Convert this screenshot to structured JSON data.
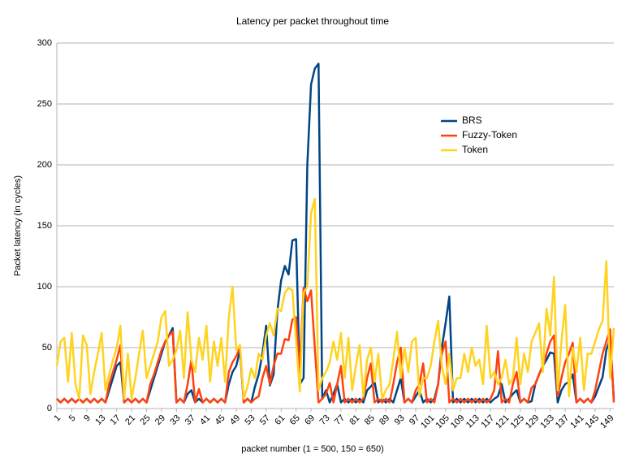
{
  "chart_data": {
    "type": "line",
    "title": "Latency per packet throughout time",
    "x_label": "packet number (1 = 500, 150 = 650)",
    "y_label": "Packet latency (in cycles)",
    "x": [
      1,
      2,
      3,
      4,
      5,
      6,
      7,
      8,
      9,
      10,
      11,
      12,
      13,
      14,
      15,
      16,
      17,
      18,
      19,
      20,
      21,
      22,
      23,
      24,
      25,
      26,
      27,
      28,
      29,
      30,
      31,
      32,
      33,
      34,
      35,
      36,
      37,
      38,
      39,
      40,
      41,
      42,
      43,
      44,
      45,
      46,
      47,
      48,
      49,
      50,
      51,
      52,
      53,
      54,
      55,
      56,
      57,
      58,
      59,
      60,
      61,
      62,
      63,
      64,
      65,
      66,
      67,
      68,
      69,
      70,
      71,
      72,
      73,
      74,
      75,
      76,
      77,
      78,
      79,
      80,
      81,
      82,
      83,
      84,
      85,
      86,
      87,
      88,
      89,
      90,
      91,
      92,
      93,
      94,
      95,
      96,
      97,
      98,
      99,
      100,
      101,
      102,
      103,
      104,
      105,
      106,
      107,
      108,
      109,
      110,
      111,
      112,
      113,
      114,
      115,
      116,
      117,
      118,
      119,
      120,
      121,
      122,
      123,
      124,
      125,
      126,
      127,
      128,
      129,
      130,
      131,
      132,
      133,
      134,
      135,
      136,
      137,
      138,
      139,
      140,
      141,
      142,
      143,
      144,
      145,
      146,
      147,
      148,
      149,
      150
    ],
    "xlim": [
      1,
      150
    ],
    "xticks": [
      1,
      5,
      9,
      13,
      17,
      21,
      25,
      29,
      33,
      37,
      41,
      45,
      49,
      53,
      57,
      61,
      65,
      69,
      73,
      77,
      81,
      85,
      89,
      93,
      97,
      101,
      105,
      109,
      113,
      117,
      121,
      125,
      129,
      133,
      137,
      141,
      145,
      149
    ],
    "ylim": [
      0,
      300
    ],
    "yticks": [
      0,
      50,
      100,
      150,
      200,
      250,
      300
    ],
    "grid": true,
    "legend_position": "upper right",
    "series": [
      {
        "name": "BRS",
        "color": "#004586",
        "values": [
          8,
          5,
          8,
          5,
          8,
          5,
          8,
          5,
          8,
          5,
          8,
          5,
          8,
          5,
          15,
          25,
          35,
          38,
          5,
          8,
          5,
          8,
          5,
          8,
          5,
          15,
          25,
          35,
          45,
          55,
          60,
          66,
          5,
          8,
          5,
          12,
          15,
          5,
          8,
          5,
          8,
          5,
          8,
          5,
          8,
          5,
          20,
          30,
          35,
          48,
          5,
          8,
          5,
          18,
          28,
          45,
          68,
          19,
          28,
          80,
          105,
          117,
          110,
          138,
          139,
          20,
          25,
          200,
          266,
          279,
          283,
          8,
          15,
          5,
          12,
          20,
          5,
          8,
          5,
          8,
          5,
          8,
          5,
          15,
          18,
          22,
          5,
          8,
          5,
          8,
          5,
          15,
          25,
          5,
          8,
          5,
          10,
          15,
          5,
          8,
          5,
          8,
          20,
          50,
          70,
          92,
          5,
          8,
          5,
          8,
          5,
          8,
          5,
          8,
          5,
          8,
          5,
          8,
          10,
          20,
          5,
          8,
          12,
          15,
          5,
          8,
          5,
          6,
          20,
          28,
          35,
          40,
          46,
          45,
          5,
          15,
          20,
          22,
          28,
          5,
          8,
          5,
          8,
          5,
          10,
          18,
          26,
          48,
          57,
          8
        ]
      },
      {
        "name": "Fuzzy-Token",
        "color": "#ff420e",
        "values": [
          8,
          5,
          8,
          5,
          8,
          5,
          8,
          5,
          8,
          5,
          8,
          5,
          8,
          5,
          20,
          30,
          40,
          52,
          5,
          8,
          5,
          8,
          5,
          8,
          5,
          20,
          28,
          38,
          48,
          55,
          60,
          63,
          5,
          8,
          5,
          20,
          40,
          5,
          16,
          5,
          8,
          5,
          8,
          5,
          8,
          5,
          30,
          38,
          43,
          50,
          5,
          8,
          5,
          8,
          10,
          25,
          35,
          20,
          35,
          45,
          45,
          57,
          56,
          73,
          75,
          30,
          99,
          88,
          97,
          50,
          5,
          8,
          12,
          21,
          5,
          20,
          35,
          5,
          8,
          5,
          8,
          5,
          8,
          25,
          37,
          5,
          8,
          5,
          8,
          5,
          20,
          38,
          50,
          5,
          8,
          5,
          15,
          20,
          37,
          5,
          8,
          5,
          20,
          45,
          55,
          5,
          8,
          5,
          8,
          5,
          8,
          5,
          8,
          5,
          8,
          5,
          8,
          15,
          47,
          5,
          8,
          5,
          20,
          30,
          5,
          8,
          5,
          17,
          20,
          28,
          35,
          45,
          55,
          60,
          10,
          25,
          38,
          45,
          54,
          5,
          8,
          5,
          8,
          5,
          15,
          30,
          45,
          55,
          65,
          5
        ]
      },
      {
        "name": "Token",
        "color": "#ffd320",
        "values": [
          35,
          55,
          58,
          22,
          62,
          20,
          8,
          60,
          52,
          12,
          30,
          45,
          62,
          15,
          28,
          40,
          50,
          68,
          8,
          45,
          8,
          25,
          45,
          64,
          25,
          35,
          45,
          55,
          75,
          80,
          35,
          40,
          48,
          64,
          25,
          79,
          40,
          30,
          58,
          40,
          68,
          22,
          55,
          35,
          58,
          22,
          75,
          100,
          48,
          52,
          8,
          18,
          33,
          25,
          45,
          40,
          60,
          70,
          60,
          82,
          80,
          95,
          99,
          97,
          55,
          14,
          95,
          100,
          160,
          172,
          15,
          25,
          30,
          38,
          55,
          40,
          62,
          25,
          58,
          15,
          35,
          52,
          10,
          40,
          50,
          22,
          45,
          8,
          15,
          20,
          40,
          63,
          25,
          50,
          30,
          55,
          58,
          10,
          25,
          25,
          35,
          55,
          72,
          35,
          20,
          45,
          15,
          25,
          25,
          45,
          30,
          50,
          35,
          40,
          20,
          68,
          25,
          30,
          20,
          25,
          40,
          20,
          25,
          58,
          20,
          45,
          30,
          55,
          62,
          70,
          30,
          82,
          60,
          108,
          15,
          55,
          85,
          10,
          50,
          30,
          58,
          15,
          45,
          45,
          55,
          65,
          72,
          121,
          25,
          66
        ]
      }
    ]
  }
}
